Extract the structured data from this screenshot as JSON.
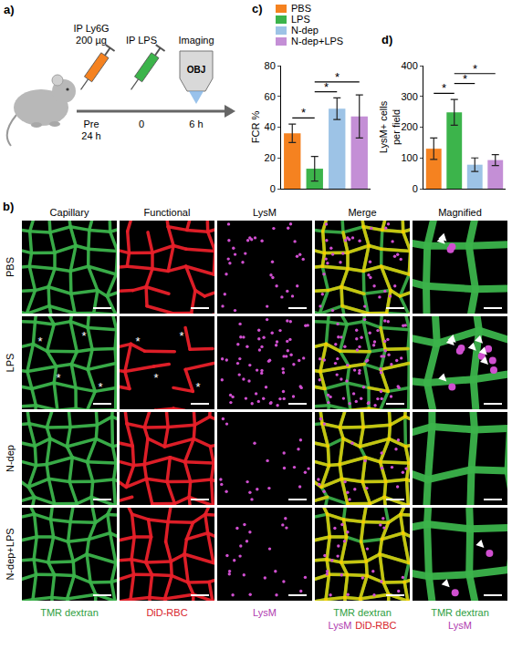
{
  "panels": {
    "a": "a)",
    "b": "b)",
    "c": "c)",
    "d": "d)"
  },
  "schematic": {
    "steps": [
      {
        "label": [
          "IP Ly6G",
          "200 µg"
        ],
        "time": [
          "Pre",
          "24 h"
        ],
        "color": "#f58220"
      },
      {
        "label": [
          "IP LPS"
        ],
        "time": [
          "0"
        ],
        "color": "#3cb44b"
      },
      {
        "label": [
          "Imaging"
        ],
        "time": [
          "6 h"
        ],
        "objective": "OBJ"
      }
    ]
  },
  "images": {
    "columns": [
      "Capillary",
      "Functional",
      "LysM",
      "Merge",
      "Magnified"
    ],
    "rows": [
      {
        "label": "PBS",
        "arrows": 2
      },
      {
        "label": "LPS",
        "arrows": 7,
        "marks": "*"
      },
      {
        "label": "N-dep",
        "arrows": 0
      },
      {
        "label": "N-dep+LPS",
        "arrows": 2
      }
    ],
    "captions": [
      [
        [
          {
            "text": "TMR dextran",
            "color": "#2e9e3e"
          }
        ]
      ],
      [
        [
          {
            "text": "DiD-RBC",
            "color": "#d8232a"
          }
        ]
      ],
      [
        [
          {
            "text": "LysM",
            "color": "#b03cb0"
          }
        ]
      ],
      [
        [
          {
            "text": "TMR dextran",
            "color": "#2e9e3e"
          }
        ],
        [
          {
            "text": "LysM",
            "color": "#b03cb0"
          },
          {
            "text": "DiD-RBC",
            "color": "#d8232a"
          }
        ]
      ],
      [
        [
          {
            "text": "TMR dextran",
            "color": "#2e9e3e"
          }
        ],
        [
          {
            "text": "LysM",
            "color": "#b03cb0"
          }
        ]
      ]
    ]
  },
  "chart_data": [
    {
      "type": "bar",
      "categories": [
        "PBS",
        "LPS",
        "N-dep",
        "N-dep+LPS"
      ],
      "colors": [
        "#f58220",
        "#3cb44b",
        "#9dc3e6",
        "#c48fd6"
      ],
      "values": [
        36,
        13,
        52,
        47
      ],
      "errors": [
        6,
        8,
        7,
        14
      ],
      "y_label": "FCR %",
      "ylim": [
        0,
        80
      ],
      "yticks": [
        0,
        20,
        40,
        60,
        80
      ],
      "tick_labels": "y",
      "legend": "top",
      "significance": [
        {
          "from": "PBS",
          "to": "LPS",
          "label": "*"
        },
        {
          "from": "LPS",
          "to": "N-dep",
          "label": "*"
        },
        {
          "from": "LPS",
          "to": "N-dep+LPS",
          "label": "*"
        }
      ]
    },
    {
      "type": "bar",
      "categories": [
        "PBS",
        "LPS",
        "N-dep",
        "N-dep+LPS"
      ],
      "colors": [
        "#f58220",
        "#3cb44b",
        "#9dc3e6",
        "#c48fd6"
      ],
      "values": [
        130,
        248,
        78,
        93
      ],
      "errors": [
        35,
        42,
        22,
        18
      ],
      "y_label": "LysM+ cells per field",
      "ylim": [
        0,
        400
      ],
      "yticks": [
        0,
        100,
        200,
        300,
        400
      ],
      "tick_labels": "y",
      "significance": [
        {
          "from": "PBS",
          "to": "LPS",
          "label": "*"
        },
        {
          "from": "LPS",
          "to": "N-dep",
          "label": "*"
        },
        {
          "from": "LPS",
          "to": "N-dep+LPS",
          "label": "*"
        }
      ]
    }
  ]
}
